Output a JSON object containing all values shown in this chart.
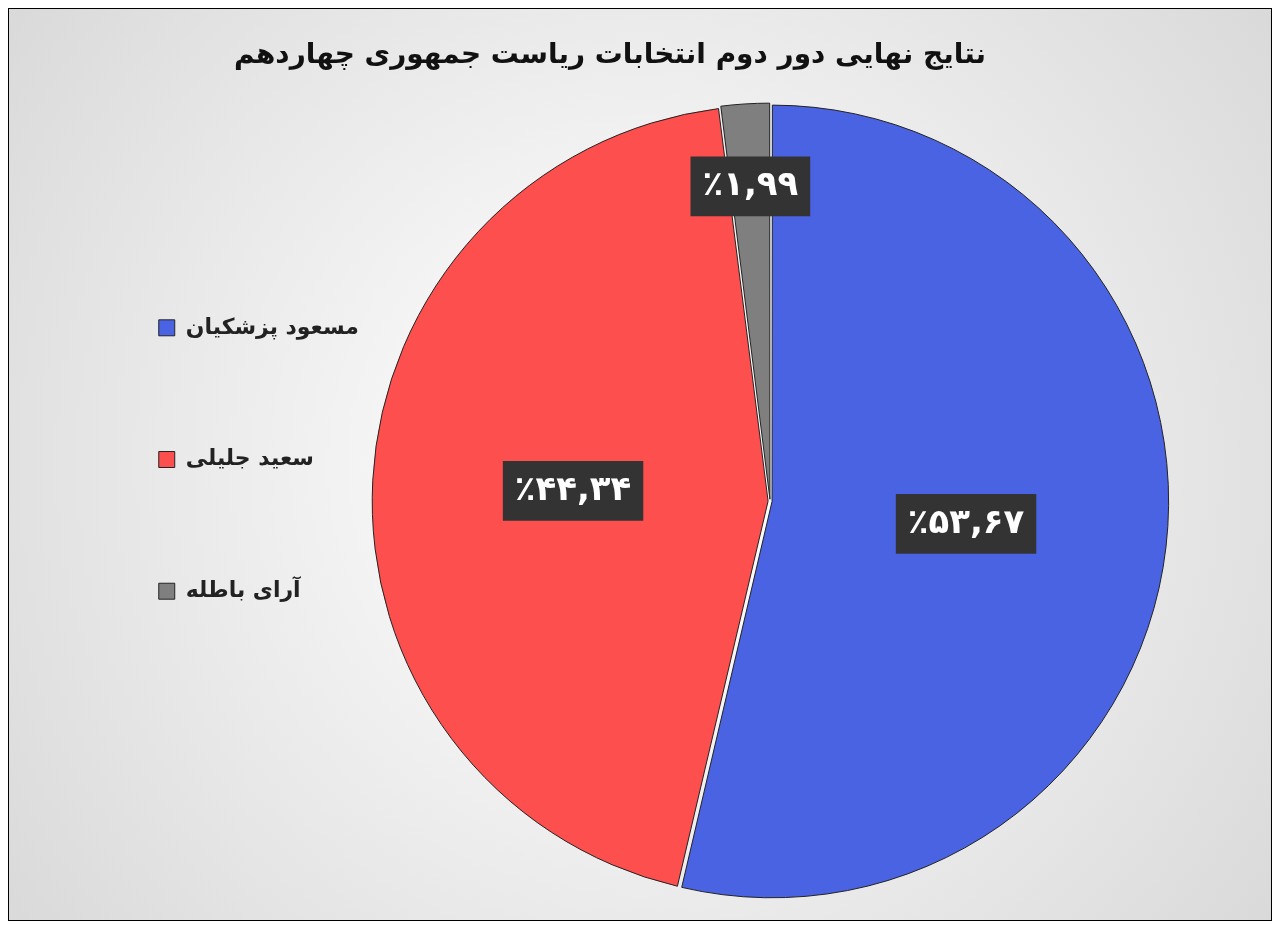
{
  "chart_data": {
    "type": "pie",
    "title": "نتایج نهایی دور دوم انتخابات ریاست جمهوری چهاردهم",
    "categories": [
      "مسعود پزشکیان",
      "سعید جلیلی",
      "آرای باطله"
    ],
    "values": [
      53.67,
      44.34,
      1.99
    ],
    "colors": [
      "#4a63e3",
      "#fe4f4f",
      "#7f7f7f"
    ],
    "value_labels": [
      "٪۵۳,۶۷",
      "٪۴۴,۳۴",
      "٪۱,۹۹"
    ],
    "legend": "left"
  }
}
